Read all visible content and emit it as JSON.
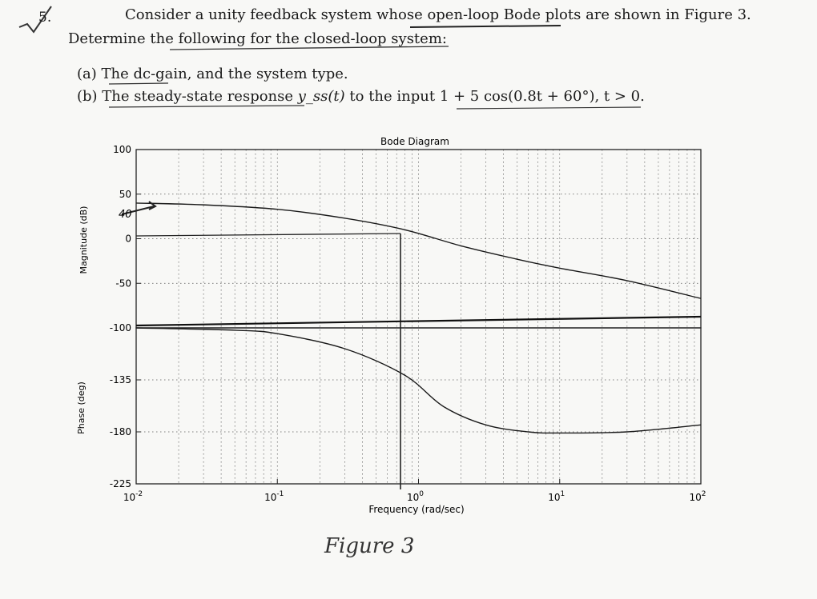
{
  "problem": {
    "number": "5.",
    "line1": "Consider a unity feedback system whose open-loop Bode plots are shown in Figure 3.",
    "line2": "Determine the following for the closed-loop system:",
    "part_a": "(a) The dc-gain, and the system type.",
    "part_b_prefix": "(b) The steady-state response ",
    "part_b_math": "y_ss(t)",
    "part_b_mid": " to the input ",
    "part_b_input": "1 + 5 cos(0.8t + 60°), t > 0."
  },
  "figure": {
    "caption": "Figure 3",
    "handwritten_mark": "40"
  },
  "chart_data": {
    "type": "line",
    "title": "Bode Diagram",
    "xlabel": "Frequency (rad/sec)",
    "xscale": "log",
    "xlim": [
      0.01,
      100
    ],
    "xticks": [
      "10^-2",
      "10^-1",
      "10^0",
      "10^1",
      "10^2"
    ],
    "grid": true,
    "subplots": [
      {
        "ylabel": "Magnitude (dB)",
        "ylim": [
          -100,
          100
        ],
        "yticks": [
          "100",
          "50",
          "0",
          "-50",
          "-100"
        ],
        "series": [
          {
            "x": [
              0.01,
              0.03,
              0.1,
              0.3,
              0.8,
              2,
              5,
              10,
              30,
              100
            ],
            "values": [
              40,
              38,
              33,
              23,
              10,
              -8,
              -23,
              -33,
              -47,
              -67
            ]
          }
        ]
      },
      {
        "ylabel": "Phase (deg)",
        "ylim": [
          -225,
          -90
        ],
        "yticks": [
          "-135",
          "-180",
          "-225"
        ],
        "series": [
          {
            "x": [
              0.01,
              0.05,
              0.1,
              0.3,
              0.8,
              1.5,
              3,
              6,
              10,
              30,
              100
            ],
            "values": [
              -90,
              -92,
              -95,
              -108,
              -131,
              -158,
              -174,
              -180,
              -181,
              -180,
              -174
            ]
          }
        ]
      }
    ]
  }
}
